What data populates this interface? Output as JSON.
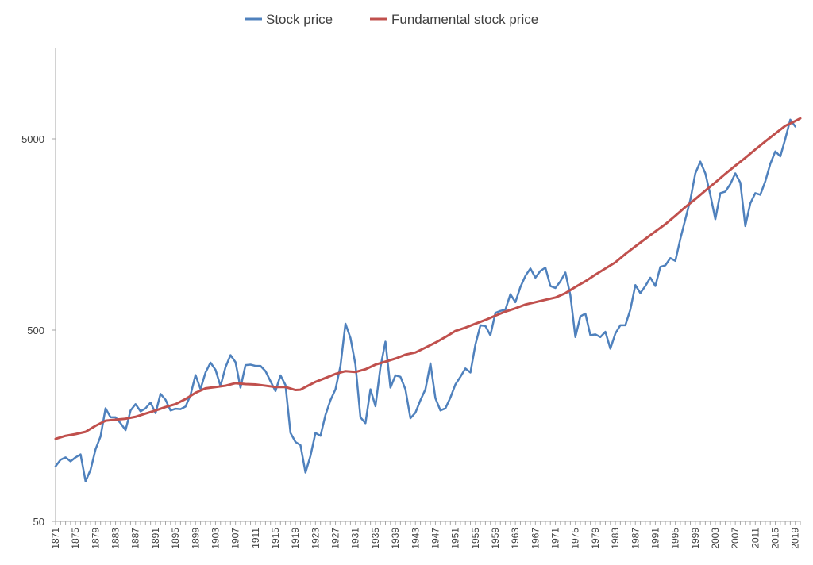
{
  "chart_data": {
    "type": "line",
    "title": "",
    "xlabel": "",
    "ylabel": "",
    "yscale": "log",
    "ylim": [
      50,
      15000
    ],
    "xlim": [
      1871,
      2020
    ],
    "legend_position": "top-center",
    "grid": false,
    "y_ticks": [
      {
        "value": 50,
        "label": "50"
      },
      {
        "value": 500,
        "label": "500"
      },
      {
        "value": 5000,
        "label": "5000"
      }
    ],
    "x_tick_labels": [
      "1871",
      "1875",
      "1879",
      "1883",
      "1887",
      "1891",
      "1895",
      "1899",
      "1903",
      "1907",
      "1911",
      "1915",
      "1919",
      "1923",
      "1927",
      "1931",
      "1935",
      "1939",
      "1943",
      "1947",
      "1951",
      "1955",
      "1959",
      "1963",
      "1967",
      "1971",
      "1975",
      "1979",
      "1983",
      "1987",
      "1991",
      "1995",
      "1999",
      "2003",
      "2007",
      "2011",
      "2015",
      "2019"
    ],
    "series": [
      {
        "name": "Stock price",
        "color": "#4f81bd",
        "points": [
          [
            1871,
            97
          ],
          [
            1872,
            105
          ],
          [
            1873,
            108
          ],
          [
            1874,
            103
          ],
          [
            1875,
            108
          ],
          [
            1876,
            112
          ],
          [
            1877,
            81
          ],
          [
            1878,
            93
          ],
          [
            1879,
            119
          ],
          [
            1880,
            139
          ],
          [
            1881,
            195
          ],
          [
            1882,
            175
          ],
          [
            1883,
            175
          ],
          [
            1884,
            163
          ],
          [
            1885,
            150
          ],
          [
            1886,
            190
          ],
          [
            1887,
            205
          ],
          [
            1888,
            188
          ],
          [
            1889,
            195
          ],
          [
            1890,
            209
          ],
          [
            1891,
            184
          ],
          [
            1892,
            232
          ],
          [
            1893,
            216
          ],
          [
            1894,
            190
          ],
          [
            1895,
            194
          ],
          [
            1896,
            193
          ],
          [
            1897,
            199
          ],
          [
            1898,
            229
          ],
          [
            1899,
            291
          ],
          [
            1900,
            246
          ],
          [
            1901,
            300
          ],
          [
            1902,
            338
          ],
          [
            1903,
            310
          ],
          [
            1904,
            255
          ],
          [
            1905,
            320
          ],
          [
            1906,
            370
          ],
          [
            1907,
            340
          ],
          [
            1908,
            250
          ],
          [
            1909,
            328
          ],
          [
            1910,
            330
          ],
          [
            1911,
            325
          ],
          [
            1912,
            325
          ],
          [
            1913,
            305
          ],
          [
            1914,
            270
          ],
          [
            1915,
            240
          ],
          [
            1916,
            290
          ],
          [
            1917,
            258
          ],
          [
            1918,
            145
          ],
          [
            1919,
            130
          ],
          [
            1920,
            125
          ],
          [
            1921,
            90
          ],
          [
            1922,
            110
          ],
          [
            1923,
            145
          ],
          [
            1924,
            140
          ],
          [
            1925,
            180
          ],
          [
            1926,
            215
          ],
          [
            1927,
            245
          ],
          [
            1928,
            325
          ],
          [
            1929,
            540
          ],
          [
            1930,
            455
          ],
          [
            1931,
            330
          ],
          [
            1932,
            175
          ],
          [
            1933,
            163
          ],
          [
            1934,
            245
          ],
          [
            1935,
            200
          ],
          [
            1936,
            320
          ],
          [
            1937,
            435
          ],
          [
            1938,
            250
          ],
          [
            1939,
            290
          ],
          [
            1940,
            285
          ],
          [
            1941,
            245
          ],
          [
            1942,
            173
          ],
          [
            1943,
            185
          ],
          [
            1944,
            215
          ],
          [
            1945,
            245
          ],
          [
            1946,
            335
          ],
          [
            1947,
            220
          ],
          [
            1948,
            190
          ],
          [
            1949,
            195
          ],
          [
            1950,
            222
          ],
          [
            1951,
            260
          ],
          [
            1952,
            285
          ],
          [
            1953,
            315
          ],
          [
            1954,
            300
          ],
          [
            1955,
            420
          ],
          [
            1956,
            530
          ],
          [
            1957,
            525
          ],
          [
            1958,
            470
          ],
          [
            1959,
            615
          ],
          [
            1960,
            630
          ],
          [
            1961,
            640
          ],
          [
            1962,
            770
          ],
          [
            1963,
            700
          ],
          [
            1964,
            840
          ],
          [
            1965,
            960
          ],
          [
            1966,
            1050
          ],
          [
            1967,
            940
          ],
          [
            1968,
            1020
          ],
          [
            1969,
            1060
          ],
          [
            1970,
            850
          ],
          [
            1971,
            830
          ],
          [
            1972,
            900
          ],
          [
            1973,
            1000
          ],
          [
            1974,
            760
          ],
          [
            1975,
            460
          ],
          [
            1976,
            590
          ],
          [
            1977,
            610
          ],
          [
            1978,
            470
          ],
          [
            1979,
            475
          ],
          [
            1980,
            460
          ],
          [
            1981,
            490
          ],
          [
            1982,
            400
          ],
          [
            1983,
            480
          ],
          [
            1984,
            530
          ],
          [
            1985,
            530
          ],
          [
            1986,
            640
          ],
          [
            1987,
            860
          ],
          [
            1988,
            780
          ],
          [
            1989,
            850
          ],
          [
            1990,
            940
          ],
          [
            1991,
            850
          ],
          [
            1992,
            1070
          ],
          [
            1993,
            1090
          ],
          [
            1994,
            1190
          ],
          [
            1995,
            1150
          ],
          [
            1996,
            1500
          ],
          [
            1997,
            1900
          ],
          [
            1998,
            2400
          ],
          [
            1999,
            3300
          ],
          [
            2000,
            3800
          ],
          [
            2001,
            3300
          ],
          [
            2002,
            2550
          ],
          [
            2003,
            1900
          ],
          [
            2004,
            2600
          ],
          [
            2005,
            2650
          ],
          [
            2006,
            2900
          ],
          [
            2007,
            3300
          ],
          [
            2008,
            2950
          ],
          [
            2009,
            1750
          ],
          [
            2010,
            2300
          ],
          [
            2011,
            2600
          ],
          [
            2012,
            2550
          ],
          [
            2013,
            3000
          ],
          [
            2014,
            3700
          ],
          [
            2015,
            4300
          ],
          [
            2016,
            4050
          ],
          [
            2017,
            5000
          ],
          [
            2018,
            6300
          ],
          [
            2019,
            5800
          ]
        ]
      },
      {
        "name": "Fundamental stock price",
        "color": "#c0504d",
        "points": [
          [
            1871,
            135
          ],
          [
            1873,
            140
          ],
          [
            1875,
            143
          ],
          [
            1877,
            147
          ],
          [
            1879,
            158
          ],
          [
            1881,
            168
          ],
          [
            1883,
            170
          ],
          [
            1885,
            172
          ],
          [
            1887,
            176
          ],
          [
            1889,
            183
          ],
          [
            1891,
            190
          ],
          [
            1893,
            198
          ],
          [
            1895,
            205
          ],
          [
            1897,
            218
          ],
          [
            1899,
            235
          ],
          [
            1901,
            248
          ],
          [
            1903,
            252
          ],
          [
            1905,
            256
          ],
          [
            1907,
            264
          ],
          [
            1909,
            261
          ],
          [
            1911,
            260
          ],
          [
            1913,
            256
          ],
          [
            1915,
            252
          ],
          [
            1917,
            252
          ],
          [
            1919,
            243
          ],
          [
            1920,
            244
          ],
          [
            1921,
            252
          ],
          [
            1923,
            268
          ],
          [
            1925,
            281
          ],
          [
            1927,
            295
          ],
          [
            1929,
            305
          ],
          [
            1931,
            302
          ],
          [
            1933,
            312
          ],
          [
            1935,
            330
          ],
          [
            1937,
            342
          ],
          [
            1939,
            355
          ],
          [
            1941,
            372
          ],
          [
            1943,
            382
          ],
          [
            1945,
            405
          ],
          [
            1947,
            430
          ],
          [
            1949,
            460
          ],
          [
            1951,
            495
          ],
          [
            1953,
            515
          ],
          [
            1955,
            540
          ],
          [
            1957,
            565
          ],
          [
            1959,
            595
          ],
          [
            1961,
            625
          ],
          [
            1963,
            650
          ],
          [
            1965,
            680
          ],
          [
            1967,
            700
          ],
          [
            1969,
            720
          ],
          [
            1971,
            740
          ],
          [
            1973,
            780
          ],
          [
            1975,
            840
          ],
          [
            1977,
            900
          ],
          [
            1979,
            975
          ],
          [
            1981,
            1050
          ],
          [
            1983,
            1130
          ],
          [
            1985,
            1250
          ],
          [
            1987,
            1370
          ],
          [
            1989,
            1500
          ],
          [
            1991,
            1640
          ],
          [
            1993,
            1790
          ],
          [
            1995,
            1980
          ],
          [
            1997,
            2200
          ],
          [
            1999,
            2420
          ],
          [
            2001,
            2680
          ],
          [
            2003,
            2960
          ],
          [
            2005,
            3280
          ],
          [
            2007,
            3620
          ],
          [
            2009,
            3980
          ],
          [
            2011,
            4400
          ],
          [
            2013,
            4850
          ],
          [
            2015,
            5330
          ],
          [
            2017,
            5850
          ],
          [
            2019,
            6200
          ],
          [
            2020,
            6400
          ]
        ]
      }
    ]
  }
}
